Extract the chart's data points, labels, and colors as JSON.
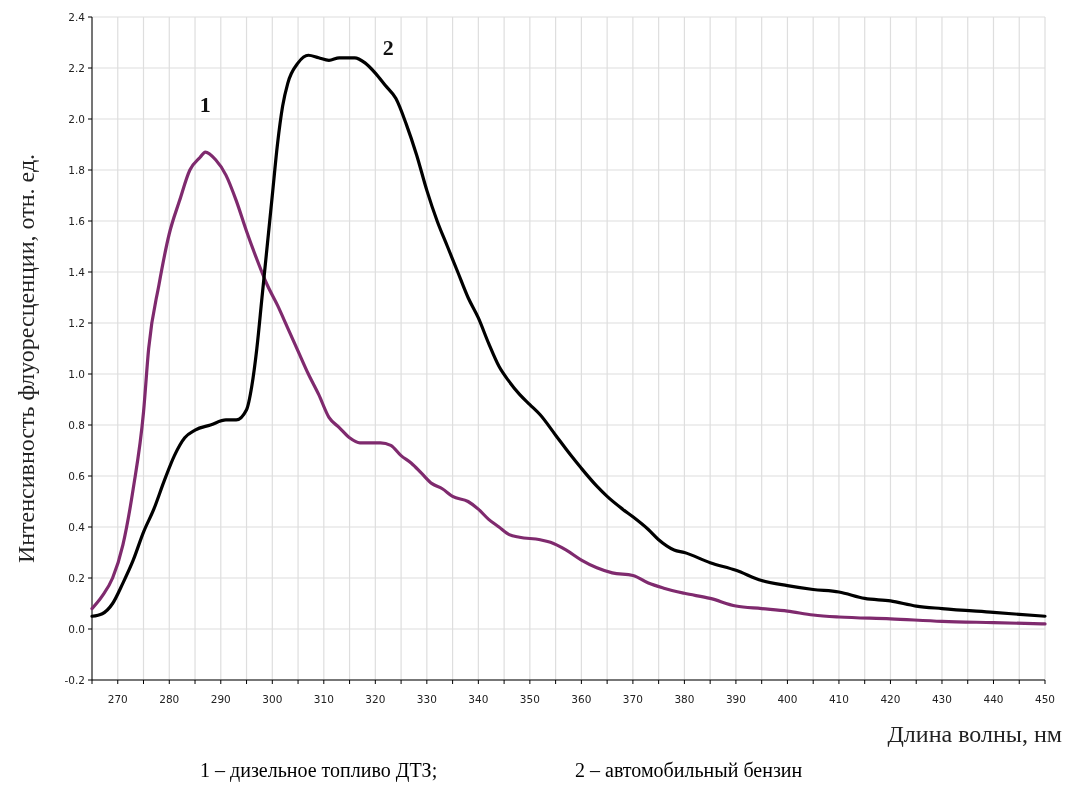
{
  "chart_data": {
    "type": "line",
    "xlabel": "Длина волны, нм",
    "ylabel": "Интенсивность флуоресценции, отн. ед.",
    "xlim": [
      265,
      450
    ],
    "ylim": [
      -0.2,
      2.4
    ],
    "xticks": [
      {
        "value": 265,
        "label": null
      },
      270,
      {
        "value": 275,
        "label": null
      },
      280,
      {
        "value": 285,
        "label": null
      },
      290,
      {
        "value": 295,
        "label": null
      },
      300,
      {
        "value": 305,
        "label": null
      },
      310,
      {
        "value": 315,
        "label": null
      },
      320,
      {
        "value": 325,
        "label": null
      },
      330,
      {
        "value": 335,
        "label": null
      },
      340,
      {
        "value": 345,
        "label": null
      },
      350,
      {
        "value": 355,
        "label": null
      },
      360,
      {
        "value": 365,
        "label": null
      },
      370,
      {
        "value": 375,
        "label": null
      },
      380,
      {
        "value": 385,
        "label": null
      },
      390,
      {
        "value": 395,
        "label": null
      },
      400,
      {
        "value": 405,
        "label": null
      },
      410,
      {
        "value": 415,
        "label": null
      },
      420,
      {
        "value": 425,
        "label": null
      },
      430,
      {
        "value": 435,
        "label": null
      },
      440,
      {
        "value": 445,
        "label": null
      },
      450
    ],
    "yticks": [
      {
        "value": -0.2,
        "label": "-0.2"
      },
      {
        "value": 0,
        "label": "0.0"
      },
      {
        "value": 0.2,
        "label": "0.2"
      },
      {
        "value": 0.4,
        "label": "0.4"
      },
      {
        "value": 0.6,
        "label": "0.6"
      },
      {
        "value": 0.8,
        "label": "0.8"
      },
      {
        "value": 1,
        "label": "1.0"
      },
      {
        "value": 1.2,
        "label": "1.2"
      },
      {
        "value": 1.4,
        "label": "1.4"
      },
      {
        "value": 1.6,
        "label": "1.6"
      },
      {
        "value": 1.8,
        "label": "1.8"
      },
      {
        "value": 2,
        "label": "2.0"
      },
      {
        "value": 2.2,
        "label": "2.2"
      },
      {
        "value": 2.4,
        "label": "2.4"
      }
    ],
    "grid": true,
    "marker": "none",
    "line_style": "solid",
    "series": [
      {
        "name": "1",
        "color": "#7f2a6e",
        "x": [
          265,
          267,
          269,
          271,
          273,
          275,
          276,
          278,
          280,
          282,
          284,
          286,
          287,
          289,
          291,
          293,
          295,
          297,
          299,
          301,
          303,
          305,
          307,
          309,
          311,
          313,
          315,
          317,
          319,
          321,
          323,
          325,
          327,
          329,
          331,
          333,
          335,
          338,
          340,
          342,
          344,
          346,
          348,
          352,
          354,
          357,
          360,
          363,
          366,
          370,
          373,
          376,
          380,
          385,
          390,
          395,
          400,
          405,
          410,
          420,
          430,
          440,
          450
        ],
        "values": [
          0.08,
          0.13,
          0.2,
          0.33,
          0.55,
          0.85,
          1.1,
          1.35,
          1.55,
          1.68,
          1.8,
          1.85,
          1.87,
          1.84,
          1.78,
          1.68,
          1.56,
          1.45,
          1.35,
          1.27,
          1.18,
          1.09,
          1.0,
          0.92,
          0.83,
          0.79,
          0.75,
          0.73,
          0.73,
          0.73,
          0.72,
          0.68,
          0.65,
          0.61,
          0.57,
          0.55,
          0.52,
          0.5,
          0.47,
          0.43,
          0.4,
          0.37,
          0.36,
          0.35,
          0.34,
          0.31,
          0.27,
          0.24,
          0.22,
          0.21,
          0.18,
          0.16,
          0.14,
          0.12,
          0.09,
          0.08,
          0.07,
          0.055,
          0.047,
          0.04,
          0.03,
          0.025,
          0.02
        ]
      },
      {
        "name": "2",
        "color": "#000000",
        "x": [
          265,
          267,
          269,
          271,
          273,
          275,
          277,
          279,
          281,
          283,
          285,
          288,
          291,
          293,
          295,
          296,
          297,
          298,
          299,
          300,
          301,
          302,
          303,
          305,
          307,
          309,
          311,
          313,
          316,
          318,
          320,
          322,
          324,
          326,
          328,
          330,
          332,
          334,
          336,
          338,
          340,
          342,
          344,
          346,
          348,
          350,
          352,
          355,
          358,
          360,
          363,
          365,
          368,
          370,
          373,
          375,
          378,
          380,
          385,
          390,
          395,
          400,
          405,
          410,
          415,
          420,
          425,
          430,
          440,
          450
        ],
        "values": [
          0.05,
          0.06,
          0.1,
          0.18,
          0.27,
          0.38,
          0.47,
          0.58,
          0.68,
          0.75,
          0.78,
          0.8,
          0.82,
          0.82,
          0.86,
          0.95,
          1.1,
          1.3,
          1.5,
          1.7,
          1.9,
          2.05,
          2.14,
          2.22,
          2.25,
          2.24,
          2.23,
          2.24,
          2.24,
          2.22,
          2.18,
          2.13,
          2.08,
          1.98,
          1.86,
          1.72,
          1.6,
          1.5,
          1.4,
          1.3,
          1.22,
          1.12,
          1.03,
          0.97,
          0.92,
          0.88,
          0.84,
          0.76,
          0.68,
          0.63,
          0.56,
          0.52,
          0.47,
          0.44,
          0.39,
          0.35,
          0.31,
          0.3,
          0.26,
          0.23,
          0.19,
          0.17,
          0.155,
          0.145,
          0.12,
          0.11,
          0.09,
          0.08,
          0.065,
          0.05
        ]
      }
    ],
    "annotations": [
      "1 – дизельное топливо ДТЗ;",
      "2 – автомобильный бензин"
    ]
  }
}
